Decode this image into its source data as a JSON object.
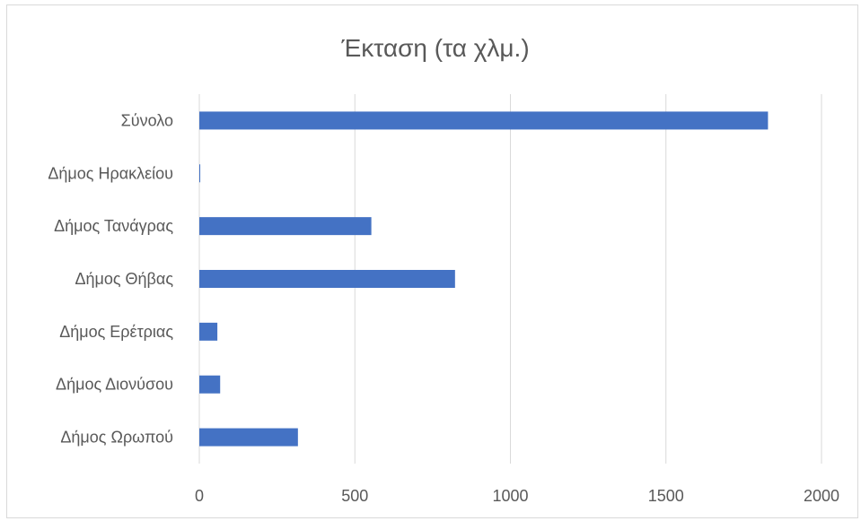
{
  "chart_data": {
    "type": "bar",
    "orientation": "horizontal",
    "title": "Έκταση (τα χλμ.)",
    "categories": [
      "Σύνολο",
      "Δήμος Ηρακλείου",
      "Δήμος Τανάγρας",
      "Δήμος Θήβας",
      "Δήμος Ερέτριας",
      "Δήμος Διονύσου",
      "Δήμος Ωρωπού"
    ],
    "values": [
      1828,
      3,
      553,
      822,
      58,
      67,
      317
    ],
    "xlim": [
      0,
      2000
    ],
    "xticks": [
      0,
      500,
      1000,
      1500,
      2000
    ],
    "grid": true,
    "bar_color": "#4472c4"
  }
}
